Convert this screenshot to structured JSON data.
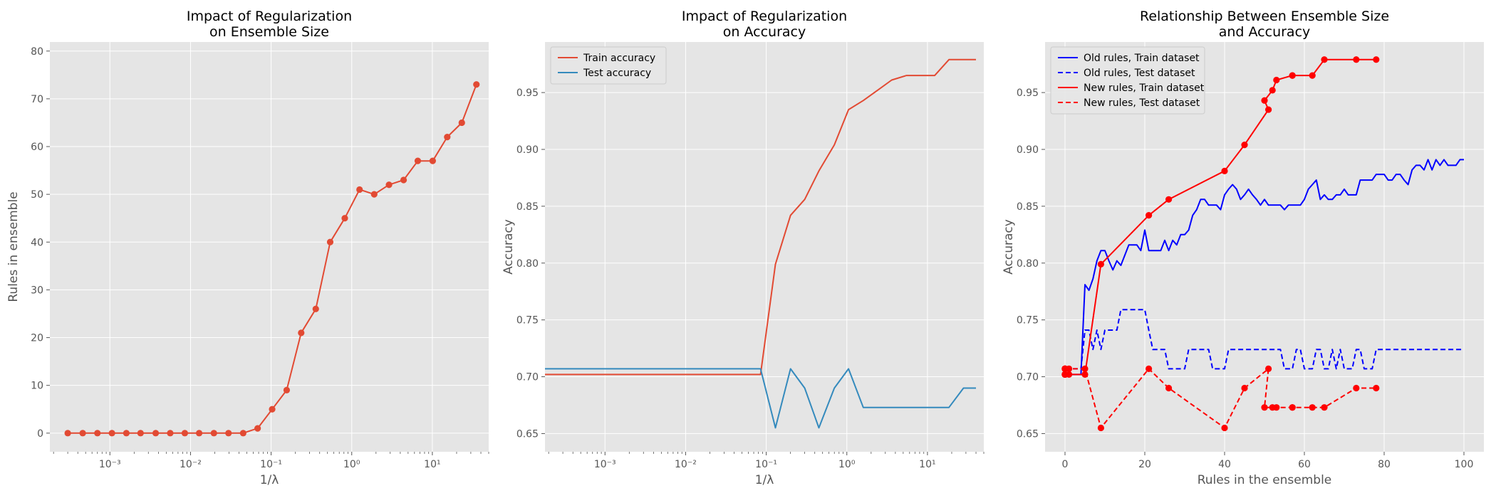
{
  "chart_data": [
    {
      "type": "line",
      "title": [
        "Impact of Regularization",
        "on Ensemble Size"
      ],
      "xlabel": "1/λ",
      "ylabel": "Rules in ensemble",
      "xscale": "log",
      "xlim": [
        0.00018,
        50
      ],
      "ylim": [
        -3.9,
        81.9
      ],
      "xticks": [
        0.001,
        0.01,
        0.1,
        1,
        10
      ],
      "xtick_labels": [
        "10⁻³",
        "10⁻²",
        "10⁻¹",
        "10⁰",
        "10¹"
      ],
      "yticks": [
        0,
        10,
        20,
        30,
        40,
        50,
        60,
        70,
        80
      ],
      "ytick_labels": [
        "0",
        "10",
        "20",
        "30",
        "40",
        "50",
        "60",
        "70",
        "80"
      ],
      "grid": true,
      "series": [
        {
          "color": "#E24A33",
          "linestyle": "solid",
          "marker": true,
          "x": [
            0.0003,
            0.00046,
            0.0007,
            0.00106,
            0.0016,
            0.0024,
            0.0037,
            0.0056,
            0.0085,
            0.0128,
            0.0195,
            0.0296,
            0.045,
            0.068,
            0.103,
            0.156,
            0.236,
            0.358,
            0.54,
            0.82,
            1.25,
            1.9,
            2.9,
            4.4,
            6.6,
            10.1,
            15.3,
            23.2,
            35.2
          ],
          "y": [
            0,
            0,
            0,
            0,
            0,
            0,
            0,
            0,
            0,
            0,
            0,
            0,
            0,
            1,
            5,
            9,
            21,
            26,
            40,
            45,
            51,
            50,
            52,
            53,
            57,
            57,
            62,
            65,
            73
          ]
        }
      ]
    },
    {
      "type": "line",
      "title": [
        "Impact of Regularization",
        "on Accuracy"
      ],
      "xlabel": "1/λ",
      "ylabel": "Accuracy",
      "xscale": "log",
      "xlim": [
        0.00018,
        50
      ],
      "ylim": [
        0.634,
        0.9945
      ],
      "xticks": [
        0.001,
        0.01,
        0.1,
        1,
        10
      ],
      "xtick_labels": [
        "10⁻³",
        "10⁻²",
        "10⁻¹",
        "10⁰",
        "10¹"
      ],
      "yticks": [
        0.65,
        0.7,
        0.75,
        0.8,
        0.85,
        0.9,
        0.95
      ],
      "ytick_labels": [
        "0.65",
        "0.70",
        "0.75",
        "0.80",
        "0.85",
        "0.90",
        "0.95"
      ],
      "grid": true,
      "legend_position": "upper-left",
      "series": [
        {
          "name": "Train accuracy",
          "color": "#E24A33",
          "linestyle": "solid",
          "marker": false,
          "x": [
            0.00018,
            0.085,
            0.13,
            0.2,
            0.3,
            0.45,
            0.7,
            1.05,
            1.6,
            2.4,
            3.6,
            5.5,
            8.2,
            12.3,
            18.5,
            28,
            40
          ],
          "y": [
            0.702,
            0.702,
            0.799,
            0.842,
            0.856,
            0.881,
            0.904,
            0.935,
            0.943,
            0.952,
            0.961,
            0.965,
            0.965,
            0.965,
            0.979,
            0.979,
            0.979
          ]
        },
        {
          "name": "Test accuracy",
          "color": "#348ABD",
          "linestyle": "solid",
          "marker": false,
          "x": [
            0.00018,
            0.085,
            0.13,
            0.2,
            0.3,
            0.45,
            0.7,
            1.05,
            1.6,
            2.4,
            3.6,
            5.5,
            8.2,
            12.3,
            18.5,
            28,
            40
          ],
          "y": [
            0.707,
            0.707,
            0.655,
            0.707,
            0.69,
            0.655,
            0.69,
            0.707,
            0.673,
            0.673,
            0.673,
            0.673,
            0.673,
            0.673,
            0.673,
            0.69,
            0.69
          ]
        }
      ]
    },
    {
      "type": "line",
      "title": [
        "Relationship Between Ensemble Size",
        "and Accuracy"
      ],
      "xlabel": "Rules in the ensemble",
      "ylabel": "Accuracy",
      "xscale": "linear",
      "xlim": [
        -5,
        105
      ],
      "ylim": [
        0.634,
        0.9945
      ],
      "xticks": [
        0,
        20,
        40,
        60,
        80,
        100
      ],
      "xtick_labels": [
        "0",
        "20",
        "40",
        "60",
        "80",
        "100"
      ],
      "yticks": [
        0.65,
        0.7,
        0.75,
        0.8,
        0.85,
        0.9,
        0.95
      ],
      "ytick_labels": [
        "0.65",
        "0.70",
        "0.75",
        "0.80",
        "0.85",
        "0.90",
        "0.95"
      ],
      "grid": true,
      "legend_position": "upper-left",
      "series": [
        {
          "name": "Old rules, Train dataset",
          "color": "#0000FF",
          "linestyle": "solid",
          "marker": false,
          "x": [
            0,
            4,
            5,
            6,
            7,
            8,
            9,
            10,
            11,
            12,
            13,
            14,
            15,
            16,
            18,
            19,
            20,
            21,
            22,
            24,
            25,
            26,
            27,
            28,
            29,
            30,
            31,
            32,
            33,
            34,
            35,
            36,
            37,
            38,
            39,
            40,
            41,
            42,
            43,
            44,
            45,
            46,
            47,
            48,
            49,
            50,
            51,
            52,
            53,
            54,
            55,
            56,
            57,
            58,
            59,
            60,
            61,
            62,
            63,
            64,
            65,
            66,
            67,
            68,
            69,
            70,
            71,
            72,
            73,
            74,
            75,
            76,
            77,
            78,
            79,
            80,
            81,
            82,
            83,
            84,
            85,
            86,
            87,
            88,
            89,
            90,
            91,
            92,
            93,
            94,
            95,
            96,
            97,
            98,
            99,
            100
          ],
          "y": [
            0.702,
            0.702,
            0.781,
            0.776,
            0.786,
            0.802,
            0.811,
            0.811,
            0.802,
            0.794,
            0.802,
            0.798,
            0.807,
            0.816,
            0.816,
            0.811,
            0.829,
            0.811,
            0.811,
            0.811,
            0.82,
            0.811,
            0.82,
            0.816,
            0.825,
            0.825,
            0.829,
            0.842,
            0.847,
            0.856,
            0.856,
            0.851,
            0.851,
            0.851,
            0.847,
            0.86,
            0.865,
            0.869,
            0.865,
            0.856,
            0.86,
            0.865,
            0.86,
            0.856,
            0.851,
            0.856,
            0.851,
            0.851,
            0.851,
            0.851,
            0.847,
            0.851,
            0.851,
            0.851,
            0.851,
            0.856,
            0.865,
            0.869,
            0.873,
            0.856,
            0.86,
            0.856,
            0.856,
            0.86,
            0.86,
            0.865,
            0.86,
            0.86,
            0.86,
            0.873,
            0.873,
            0.873,
            0.873,
            0.878,
            0.878,
            0.878,
            0.873,
            0.873,
            0.878,
            0.878,
            0.873,
            0.869,
            0.882,
            0.886,
            0.886,
            0.882,
            0.891,
            0.882,
            0.891,
            0.886,
            0.891,
            0.886,
            0.886,
            0.886,
            0.891,
            0.891
          ]
        },
        {
          "name": "Old rules, Test dataset",
          "color": "#0000FF",
          "linestyle": "dashed",
          "marker": false,
          "x": [
            0,
            4,
            5,
            6,
            7,
            8,
            9,
            10,
            12,
            13,
            14,
            18,
            19,
            20,
            21,
            22,
            23,
            24,
            25,
            26,
            27,
            28,
            29,
            30,
            31,
            32,
            33,
            34,
            35,
            36,
            37,
            38,
            39,
            40,
            41,
            42,
            43,
            44,
            50,
            51,
            52,
            53,
            54,
            55,
            56,
            57,
            58,
            59,
            60,
            61,
            62,
            63,
            64,
            65,
            66,
            67,
            68,
            69,
            70,
            71,
            72,
            73,
            74,
            75,
            76,
            77,
            78,
            79,
            80,
            81,
            85,
            100
          ],
          "y": [
            0.707,
            0.707,
            0.741,
            0.741,
            0.724,
            0.741,
            0.724,
            0.741,
            0.741,
            0.741,
            0.759,
            0.759,
            0.759,
            0.759,
            0.741,
            0.724,
            0.724,
            0.724,
            0.724,
            0.707,
            0.707,
            0.707,
            0.707,
            0.707,
            0.724,
            0.724,
            0.724,
            0.724,
            0.724,
            0.724,
            0.707,
            0.707,
            0.707,
            0.707,
            0.724,
            0.724,
            0.724,
            0.724,
            0.724,
            0.724,
            0.724,
            0.724,
            0.724,
            0.707,
            0.707,
            0.707,
            0.724,
            0.724,
            0.707,
            0.707,
            0.707,
            0.724,
            0.724,
            0.707,
            0.707,
            0.724,
            0.707,
            0.724,
            0.707,
            0.707,
            0.707,
            0.724,
            0.724,
            0.707,
            0.707,
            0.707,
            0.724,
            0.724,
            0.724,
            0.724,
            0.724,
            0.724
          ]
        },
        {
          "name": "New rules, Train dataset",
          "color": "#FF0000",
          "linestyle": "solid",
          "marker": true,
          "x": [
            0,
            0,
            0,
            0,
            0,
            0,
            0,
            0,
            0,
            0,
            0,
            0,
            0,
            1,
            5,
            9,
            21,
            26,
            40,
            45,
            51,
            50,
            52,
            53,
            57,
            57,
            62,
            65,
            73,
            78
          ],
          "y": [
            0.702,
            0.702,
            0.702,
            0.702,
            0.702,
            0.702,
            0.702,
            0.702,
            0.702,
            0.702,
            0.702,
            0.702,
            0.702,
            0.702,
            0.702,
            0.799,
            0.842,
            0.856,
            0.881,
            0.904,
            0.935,
            0.943,
            0.952,
            0.961,
            0.965,
            0.965,
            0.965,
            0.979,
            0.979,
            0.979
          ]
        },
        {
          "name": "New rules, Test dataset",
          "color": "#FF0000",
          "linestyle": "dashed",
          "marker": true,
          "x": [
            0,
            0,
            0,
            0,
            0,
            0,
            0,
            0,
            0,
            0,
            0,
            0,
            0,
            1,
            5,
            9,
            21,
            26,
            40,
            45,
            51,
            50,
            52,
            53,
            57,
            57,
            62,
            65,
            73,
            78
          ],
          "y": [
            0.707,
            0.707,
            0.707,
            0.707,
            0.707,
            0.707,
            0.707,
            0.707,
            0.707,
            0.707,
            0.707,
            0.707,
            0.707,
            0.707,
            0.707,
            0.655,
            0.707,
            0.69,
            0.655,
            0.69,
            0.707,
            0.673,
            0.673,
            0.673,
            0.673,
            0.673,
            0.673,
            0.673,
            0.69,
            0.69
          ]
        }
      ]
    }
  ]
}
